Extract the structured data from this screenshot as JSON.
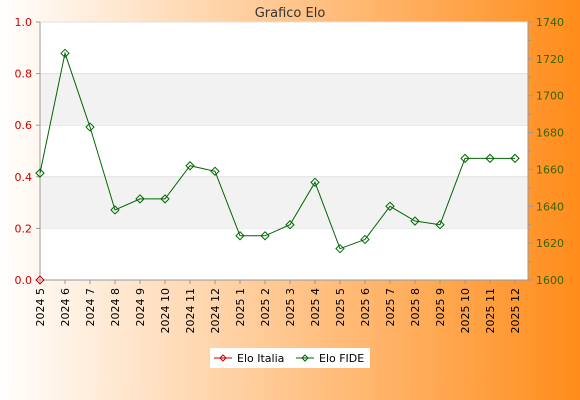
{
  "colors": {
    "elo_italia": "#cc0000",
    "elo_fide": "#006600",
    "left_axis": "#cc0000",
    "right_axis": "#336600",
    "band": "#f2f2f2",
    "gradient_start": "#ffffff",
    "gradient_end": "#ff8c1a"
  },
  "chart_data": {
    "type": "line",
    "title": "Grafico Elo",
    "xlabel": "",
    "categories": [
      "2024 5",
      "2024 6",
      "2024 7",
      "2024 8",
      "2024 9",
      "2024 10",
      "2024 11",
      "2024 12",
      "2025 1",
      "2025 2",
      "2025 3",
      "2025 4",
      "2025 5",
      "2025 6",
      "2025 7",
      "2025 8",
      "2025 9",
      "2025 10",
      "2025 11",
      "2025 12"
    ],
    "series": [
      {
        "name": "Elo Italia",
        "axis": "left",
        "values": [
          0,
          null,
          null,
          null,
          null,
          null,
          null,
          null,
          null,
          null,
          null,
          null,
          null,
          null,
          null,
          null,
          null,
          null,
          null,
          null
        ]
      },
      {
        "name": "Elo FIDE",
        "axis": "right",
        "values": [
          1658,
          1723,
          1683,
          1638,
          1644,
          1644,
          1662,
          1659,
          1624,
          1624,
          1630,
          1653,
          1617,
          1622,
          1640,
          1632,
          1630,
          1666,
          1666,
          1666
        ]
      }
    ],
    "y_left": {
      "lim": [
        0,
        1
      ],
      "ticks": [
        "0.0",
        "0.2",
        "0.4",
        "0.6",
        "0.8",
        "1.0"
      ]
    },
    "y_right": {
      "lim": [
        1600,
        1740
      ],
      "ticks": [
        "1600",
        "1620",
        "1640",
        "1660",
        "1680",
        "1700",
        "1720",
        "1740"
      ]
    },
    "grid": true,
    "legend_position": "bottom-center"
  }
}
